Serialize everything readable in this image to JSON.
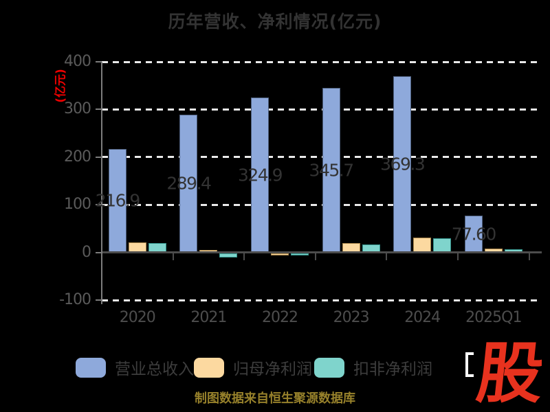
{
  "title": "历年营收、净利情况(亿元)",
  "y_axis_label": "(亿元)",
  "y_axis_label_color": "#ee0000",
  "source_note": "制图数据来自恒生聚源数据库",
  "watermark": {
    "text": "股",
    "color": "#e8321e"
  },
  "chart_data": {
    "type": "bar",
    "title": "历年营收、净利情况(亿元)",
    "ylabel": "(亿元)",
    "categories": [
      "2020",
      "2021",
      "2022",
      "2023",
      "2024",
      "2025Q1"
    ],
    "series": [
      {
        "name": "营业总收入",
        "color": "#8ea9db",
        "border_color": "#4e5f7d",
        "values": [
          216.9,
          289.4,
          324.9,
          345.7,
          369.3,
          77.6
        ],
        "bar_labels": [
          "216.9",
          "289.4",
          "324.9",
          "345.7",
          "369.3",
          "77.60"
        ]
      },
      {
        "name": "归母净利润",
        "color": "#fcd9a0",
        "border_color": "#a8854a",
        "values": [
          20.5,
          5,
          -1,
          19,
          30.5,
          8
        ]
      },
      {
        "name": "扣非净利润",
        "color": "#7fd4cc",
        "border_color": "#35948c",
        "values": [
          19,
          -8,
          -1.5,
          16.5,
          29,
          7
        ]
      }
    ],
    "y_ticks": [
      400,
      300,
      200,
      100,
      0,
      -100
    ],
    "ylim": [
      -100,
      400
    ],
    "grid": "horizontal-dashed-white",
    "background": "#000000",
    "legend_position": "bottom"
  }
}
